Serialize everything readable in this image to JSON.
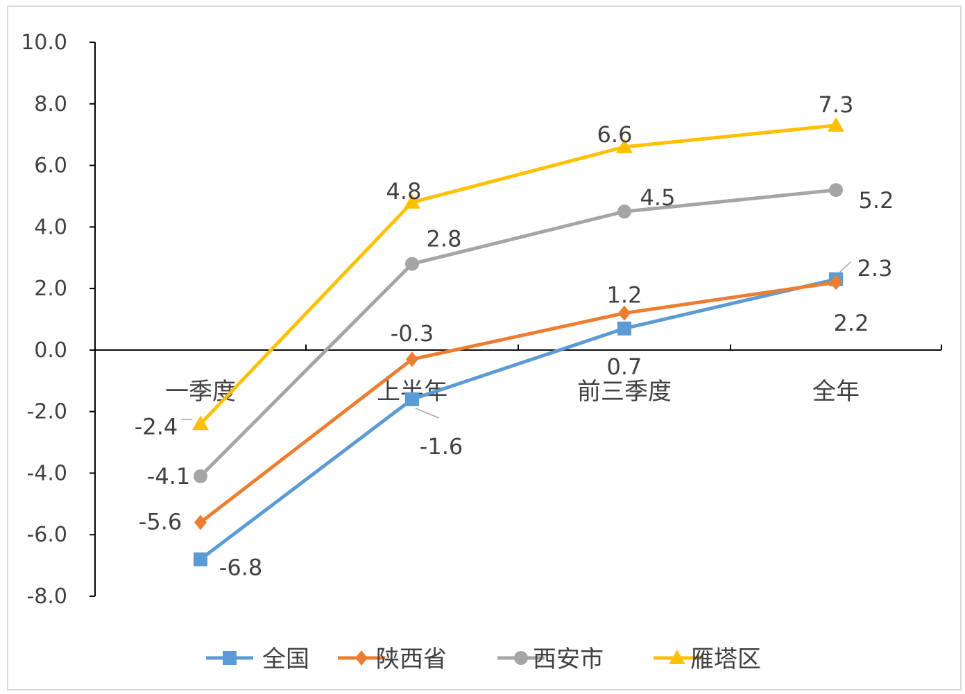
{
  "chart_data": {
    "type": "line",
    "title": "",
    "xlabel": "",
    "ylabel": "",
    "categories": [
      "一季度",
      "上半年",
      "前三季度",
      "全年"
    ],
    "ylim": [
      -8.0,
      10.0
    ],
    "yticks": [
      "10.0",
      "8.0",
      "6.0",
      "4.0",
      "2.0",
      "0.0",
      "-2.0",
      "-4.0",
      "-6.0",
      "-8.0"
    ],
    "grid": false,
    "legend_position": "bottom",
    "series": [
      {
        "name": "全国",
        "values": [
          -6.8,
          -1.6,
          0.7,
          2.3
        ],
        "labels": [
          "-6.8",
          "-1.6",
          "0.7",
          "2.3"
        ],
        "color": "#5b9bd5",
        "marker": "square"
      },
      {
        "name": "陕西省",
        "values": [
          -5.6,
          -0.3,
          1.2,
          2.2
        ],
        "labels": [
          "-5.6",
          "-0.3",
          "1.2",
          "2.2"
        ],
        "color": "#ed7d31",
        "marker": "diamond"
      },
      {
        "name": "西安市",
        "values": [
          -4.1,
          2.8,
          4.5,
          5.2
        ],
        "labels": [
          "-4.1",
          "2.8",
          "4.5",
          "5.2"
        ],
        "color": "#a5a5a5",
        "marker": "circle"
      },
      {
        "name": "雁塔区",
        "values": [
          -2.4,
          4.8,
          6.6,
          7.3
        ],
        "labels": [
          "-2.4",
          "4.8",
          "6.6",
          "7.3"
        ],
        "color": "#ffc000",
        "marker": "triangle"
      }
    ]
  }
}
